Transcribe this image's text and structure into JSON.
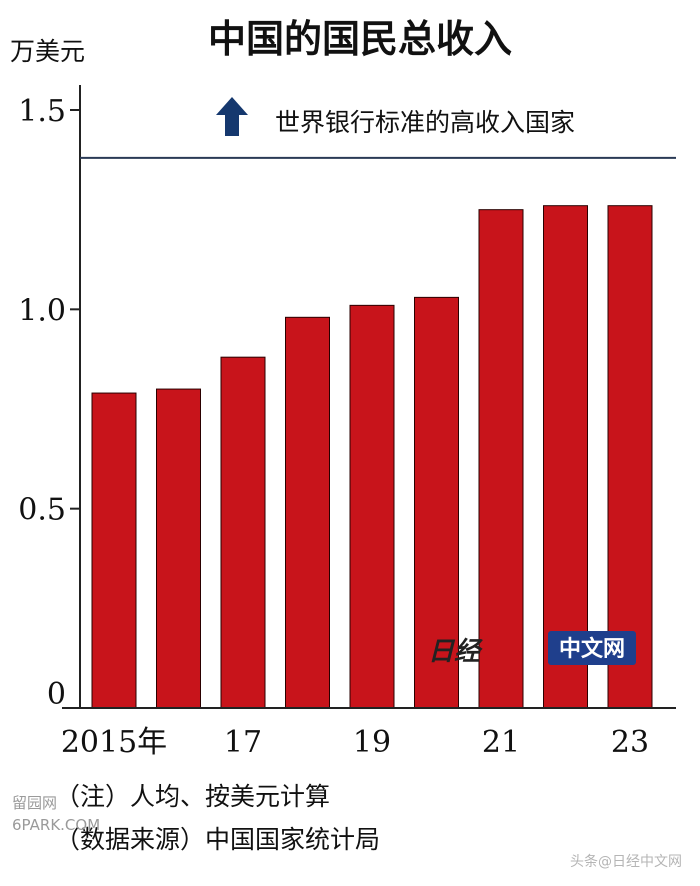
{
  "chart_data": {
    "type": "bar",
    "title": "中国的国民总收入",
    "ylabel": "万美元",
    "ylim": [
      0,
      1.5
    ],
    "yticks": [
      "0",
      "0.5",
      "1.0",
      "1.5"
    ],
    "ytick_values": [
      0,
      0.5,
      1.0,
      1.5
    ],
    "categories": [
      "2015",
      "2016",
      "2017",
      "2018",
      "2019",
      "2020",
      "2021",
      "2022",
      "2023"
    ],
    "xtick_labels": [
      "2015年",
      "",
      "17",
      "",
      "19",
      "",
      "21",
      "",
      "23"
    ],
    "values": [
      0.79,
      0.8,
      0.88,
      0.98,
      1.01,
      1.03,
      1.25,
      1.26,
      1.26
    ],
    "reference_line": {
      "value": 1.38,
      "label": "世界银行标准的高收入国家",
      "color": "#2a3a55"
    },
    "bar_color": "#c8141b",
    "grid": false
  },
  "notes": [
    "（注）人均、按美元计算",
    "（数据来源）中国国家统计局"
  ],
  "watermark": {
    "logo": "日经",
    "label": "中文网",
    "site": "留园网",
    "site_url": "6PARK.COM",
    "corner": "头条@日经中文网"
  },
  "colors": {
    "bar": "#c8141b",
    "arrow": "#15386e",
    "watermark_box": "#1f3f8c"
  }
}
